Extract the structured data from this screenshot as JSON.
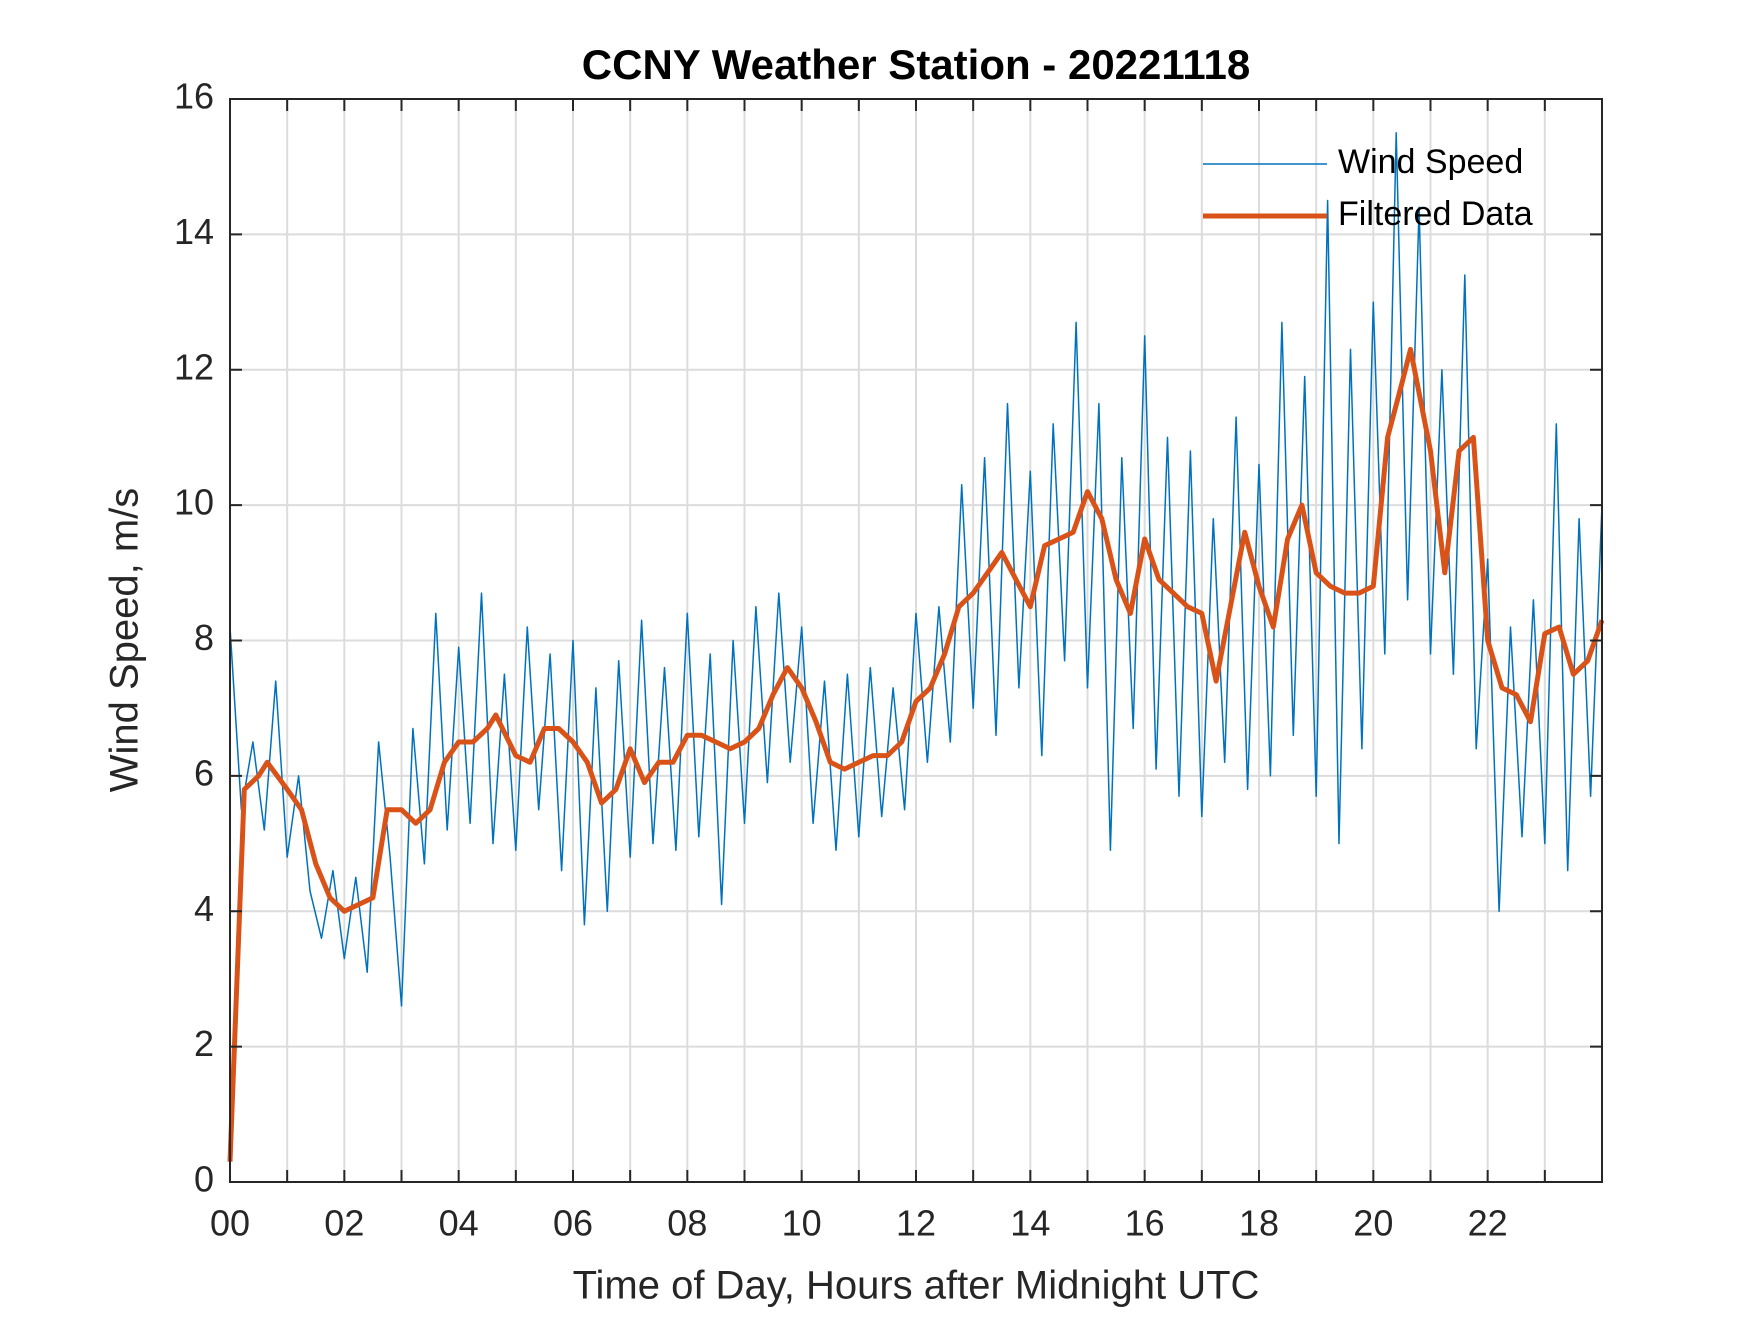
{
  "chart_data": {
    "type": "line",
    "title": "CCNY Weather Station - 20221118",
    "x_label": "Time of Day, Hours after Midnight UTC",
    "y_label": "Wind Speed, m/s",
    "xlim": [
      0,
      24
    ],
    "ylim": [
      0,
      16
    ],
    "xticks": [
      {
        "value": 0,
        "label": "00"
      },
      {
        "value": 2,
        "label": "02"
      },
      {
        "value": 4,
        "label": "04"
      },
      {
        "value": 6,
        "label": "06"
      },
      {
        "value": 8,
        "label": "08"
      },
      {
        "value": 10,
        "label": "10"
      },
      {
        "value": 12,
        "label": "12"
      },
      {
        "value": 14,
        "label": "14"
      },
      {
        "value": 16,
        "label": "16"
      },
      {
        "value": 18,
        "label": "18"
      },
      {
        "value": 20,
        "label": "20"
      },
      {
        "value": 22,
        "label": "22"
      }
    ],
    "x_minor_ticks": [
      1,
      3,
      5,
      7,
      9,
      11,
      13,
      15,
      17,
      19,
      21,
      23
    ],
    "yticks": [
      0,
      2,
      4,
      6,
      8,
      10,
      12,
      14,
      16
    ],
    "grid": true,
    "legend": "upper right",
    "series": [
      {
        "name": "Wind Speed",
        "color": "#0072BD",
        "width": 1.5,
        "x": [
          0,
          0.2,
          0.4,
          0.6,
          0.8,
          1,
          1.2,
          1.4,
          1.6,
          1.8,
          2,
          2.2,
          2.4,
          2.6,
          2.8,
          3,
          3.2,
          3.4,
          3.6,
          3.8,
          4,
          4.2,
          4.4,
          4.6,
          4.8,
          5,
          5.2,
          5.4,
          5.6,
          5.8,
          6,
          6.2,
          6.4,
          6.6,
          6.8,
          7,
          7.2,
          7.4,
          7.6,
          7.8,
          8,
          8.2,
          8.4,
          8.6,
          8.8,
          9,
          9.2,
          9.4,
          9.6,
          9.8,
          10,
          10.2,
          10.4,
          10.6,
          10.8,
          11,
          11.2,
          11.4,
          11.6,
          11.8,
          12,
          12.2,
          12.4,
          12.6,
          12.8,
          13,
          13.2,
          13.4,
          13.6,
          13.8,
          14,
          14.2,
          14.4,
          14.6,
          14.8,
          15,
          15.2,
          15.4,
          15.6,
          15.8,
          16,
          16.2,
          16.4,
          16.6,
          16.8,
          17,
          17.2,
          17.4,
          17.6,
          17.8,
          18,
          18.2,
          18.4,
          18.6,
          18.8,
          19,
          19.2,
          19.4,
          19.6,
          19.8,
          20,
          20.2,
          20.4,
          20.6,
          20.8,
          21,
          21.2,
          21.4,
          21.6,
          21.8,
          22,
          22.2,
          22.4,
          22.6,
          22.8,
          23,
          23.2,
          23.4,
          23.6,
          23.8,
          24
        ],
        "values": [
          8.2,
          5.5,
          6.5,
          5.2,
          7.4,
          4.8,
          6.0,
          4.3,
          3.6,
          4.6,
          3.3,
          4.5,
          3.1,
          6.5,
          4.8,
          2.6,
          6.7,
          4.7,
          8.4,
          5.2,
          7.9,
          5.3,
          8.7,
          5.0,
          7.5,
          4.9,
          8.2,
          5.5,
          7.8,
          4.6,
          8.0,
          3.8,
          7.3,
          4.0,
          7.7,
          4.8,
          8.3,
          5.0,
          7.6,
          4.9,
          8.4,
          5.1,
          7.8,
          4.1,
          8.0,
          5.3,
          8.5,
          5.9,
          8.7,
          6.2,
          8.2,
          5.3,
          7.4,
          4.9,
          7.5,
          5.1,
          7.6,
          5.4,
          7.3,
          5.5,
          8.4,
          6.2,
          8.5,
          6.5,
          10.3,
          7.0,
          10.7,
          6.6,
          11.5,
          7.3,
          10.5,
          6.3,
          11.2,
          7.7,
          12.7,
          7.3,
          11.5,
          4.9,
          10.7,
          6.7,
          12.5,
          6.1,
          11.0,
          5.7,
          10.8,
          5.4,
          9.8,
          6.2,
          11.3,
          5.8,
          10.6,
          6.0,
          12.7,
          6.6,
          11.9,
          5.7,
          14.5,
          5.0,
          12.3,
          6.4,
          13.0,
          7.8,
          15.5,
          8.6,
          14.4,
          7.8,
          12.0,
          7.5,
          13.4,
          6.4,
          9.2,
          4.0,
          8.2,
          5.1,
          8.6,
          5.0,
          11.2,
          4.6,
          9.8,
          5.7,
          10.0
        ]
      },
      {
        "name": "Filtered Data",
        "color": "#D95319",
        "width": 5,
        "x": [
          0,
          0.25,
          0.5,
          0.65,
          1,
          1.25,
          1.5,
          1.75,
          2,
          2.25,
          2.5,
          2.75,
          3,
          3.25,
          3.5,
          3.75,
          4,
          4.25,
          4.5,
          4.65,
          5,
          5.25,
          5.5,
          5.75,
          6,
          6.25,
          6.5,
          6.75,
          7,
          7.25,
          7.5,
          7.75,
          8,
          8.25,
          8.5,
          8.75,
          9,
          9.25,
          9.5,
          9.75,
          10,
          10.25,
          10.5,
          10.75,
          11,
          11.25,
          11.5,
          11.75,
          12,
          12.25,
          12.5,
          12.75,
          13,
          13.25,
          13.5,
          13.75,
          14,
          14.25,
          14.5,
          14.75,
          15,
          15.25,
          15.5,
          15.75,
          16,
          16.25,
          16.5,
          16.75,
          17,
          17.25,
          17.5,
          17.75,
          18,
          18.25,
          18.5,
          18.75,
          19,
          19.25,
          19.5,
          19.75,
          20,
          20.25,
          20.5,
          20.65,
          21,
          21.25,
          21.5,
          21.75,
          22,
          22.25,
          22.5,
          22.75,
          23,
          23.25,
          23.5,
          23.75,
          24
        ],
        "values": [
          0.3,
          5.8,
          6.0,
          6.2,
          5.8,
          5.5,
          4.7,
          4.2,
          4.0,
          4.1,
          4.2,
          5.5,
          5.5,
          5.3,
          5.5,
          6.2,
          6.5,
          6.5,
          6.7,
          6.9,
          6.3,
          6.2,
          6.7,
          6.7,
          6.5,
          6.2,
          5.6,
          5.8,
          6.4,
          5.9,
          6.2,
          6.2,
          6.6,
          6.6,
          6.5,
          6.4,
          6.5,
          6.7,
          7.2,
          7.6,
          7.3,
          6.8,
          6.2,
          6.1,
          6.2,
          6.3,
          6.3,
          6.5,
          7.1,
          7.3,
          7.8,
          8.5,
          8.7,
          9.0,
          9.3,
          8.9,
          8.5,
          9.4,
          9.5,
          9.6,
          10.2,
          9.8,
          8.9,
          8.4,
          9.5,
          8.9,
          8.7,
          8.5,
          8.4,
          7.4,
          8.5,
          9.6,
          8.8,
          8.2,
          9.5,
          10.0,
          9.0,
          8.8,
          8.7,
          8.7,
          8.8,
          11.0,
          11.8,
          12.3,
          10.8,
          9.0,
          10.8,
          11.0,
          8.0,
          7.3,
          7.2,
          6.8,
          8.1,
          8.2,
          7.5,
          7.7,
          8.3
        ]
      }
    ]
  }
}
